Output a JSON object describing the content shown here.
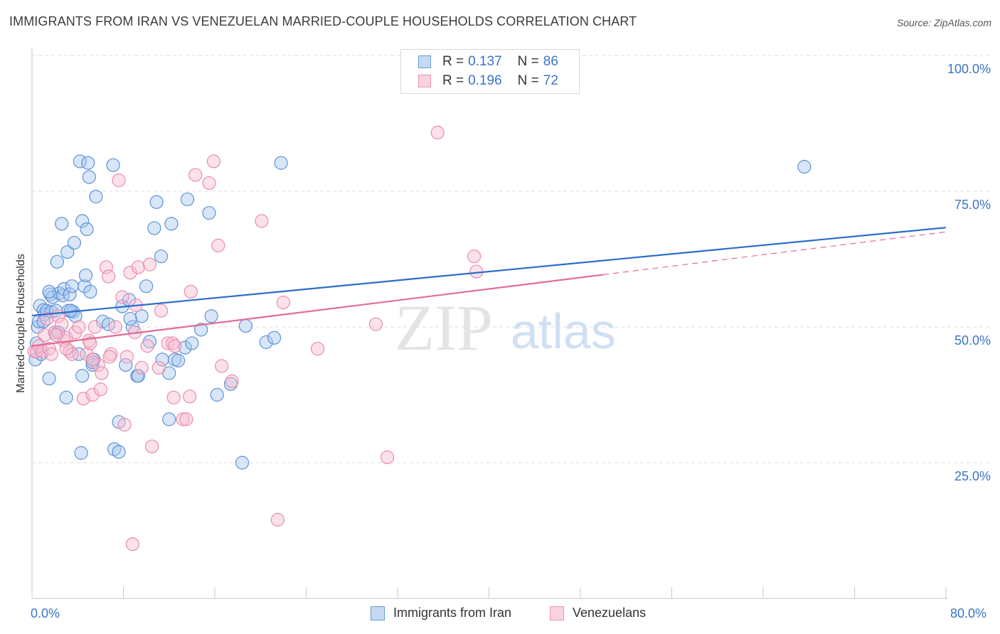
{
  "title": "IMMIGRANTS FROM IRAN VS VENEZUELAN MARRIED-COUPLE HOUSEHOLDS CORRELATION CHART",
  "source": "Source: ZipAtlas.com",
  "watermark": {
    "zip": "ZIP",
    "atlas": "atlas"
  },
  "legend_top": [
    {
      "r_label": "R =",
      "r_value": "0.137",
      "n_label": "N =",
      "n_value": "86"
    },
    {
      "r_label": "R =",
      "r_value": "0.196",
      "n_label": "N =",
      "n_value": "72"
    }
  ],
  "legend_bottom": [
    "Immigrants from Iran",
    "Venezuelans"
  ],
  "colors": {
    "blue": "#3a75c4",
    "blue_fill": "#a9c8ef",
    "blue_line": "#2a6dc9",
    "pink": "#e8739b",
    "pink_fill": "#f6bfd1",
    "pink_line": "#e06c95",
    "grid": "#e3e3e3",
    "axis_text": "#3a75c4"
  },
  "chart_data": {
    "type": "scatter",
    "title": "IMMIGRANTS FROM IRAN VS VENEZUELAN MARRIED-COUPLE HOUSEHOLDS CORRELATION CHART",
    "xlabel": "",
    "ylabel": "Married-couple Households",
    "xlim": [
      0,
      80
    ],
    "ylim": [
      0,
      105
    ],
    "x_tick_labels": [
      "0.0%",
      "80.0%"
    ],
    "y_ticks": [
      25,
      50,
      75,
      100
    ],
    "y_tick_labels": [
      "25.0%",
      "50.0%",
      "75.0%",
      "100.0%"
    ],
    "grid": true,
    "legend_position": "top-center",
    "series": [
      {
        "name": "Immigrants from Iran",
        "color": "#3a75c4",
        "trend": {
          "x": [
            0,
            80
          ],
          "y": [
            52.1,
            68.3
          ],
          "dashed_from": null
        },
        "points": [
          [
            0.3,
            44.0
          ],
          [
            0.4,
            47.0
          ],
          [
            0.5,
            50.0
          ],
          [
            0.6,
            51.0
          ],
          [
            0.7,
            53.9
          ],
          [
            0.8,
            45.0
          ],
          [
            1.0,
            53.1
          ],
          [
            1.1,
            52.3
          ],
          [
            1.3,
            53.0
          ],
          [
            1.5,
            40.5
          ],
          [
            1.6,
            56.0
          ],
          [
            1.7,
            52.8
          ],
          [
            1.8,
            55.5
          ],
          [
            2.0,
            49.0
          ],
          [
            2.1,
            53.0
          ],
          [
            2.2,
            62.0
          ],
          [
            2.4,
            56.2
          ],
          [
            2.6,
            69.0
          ],
          [
            2.7,
            55.8
          ],
          [
            2.8,
            57.0
          ],
          [
            3.0,
            37.0
          ],
          [
            3.1,
            63.8
          ],
          [
            3.2,
            53.0
          ],
          [
            3.3,
            56.0
          ],
          [
            3.5,
            57.5
          ],
          [
            3.6,
            52.8
          ],
          [
            3.7,
            65.5
          ],
          [
            3.8,
            52.0
          ],
          [
            4.1,
            45.0
          ],
          [
            4.2,
            80.5
          ],
          [
            4.4,
            69.5
          ],
          [
            4.6,
            57.5
          ],
          [
            4.7,
            59.5
          ],
          [
            4.8,
            68.0
          ],
          [
            4.9,
            80.2
          ],
          [
            5.0,
            77.6
          ],
          [
            5.1,
            56.5
          ],
          [
            5.3,
            43.0
          ],
          [
            5.4,
            44.0
          ],
          [
            5.6,
            74.0
          ],
          [
            6.2,
            51.0
          ],
          [
            6.7,
            50.5
          ],
          [
            7.1,
            79.8
          ],
          [
            7.2,
            27.5
          ],
          [
            7.6,
            32.5
          ],
          [
            7.9,
            53.8
          ],
          [
            8.2,
            43.0
          ],
          [
            8.5,
            55.0
          ],
          [
            8.8,
            50.0
          ],
          [
            9.2,
            41.0
          ],
          [
            9.6,
            52.0
          ],
          [
            10.0,
            57.5
          ],
          [
            10.3,
            47.3
          ],
          [
            10.7,
            68.2
          ],
          [
            10.9,
            73.0
          ],
          [
            11.4,
            44.0
          ],
          [
            11.3,
            63.0
          ],
          [
            12.0,
            41.5
          ],
          [
            12.2,
            69.0
          ],
          [
            12.5,
            44.0
          ],
          [
            12.8,
            43.8
          ],
          [
            13.4,
            46.2
          ],
          [
            13.6,
            73.5
          ],
          [
            14.0,
            47.0
          ],
          [
            14.8,
            49.5
          ],
          [
            15.5,
            71.0
          ],
          [
            15.7,
            52.0
          ],
          [
            16.2,
            37.5
          ],
          [
            17.4,
            39.5
          ],
          [
            18.4,
            25.0
          ],
          [
            18.7,
            50.2
          ],
          [
            20.5,
            47.2
          ],
          [
            21.2,
            48.0
          ],
          [
            21.8,
            80.2
          ],
          [
            67.6,
            79.5
          ],
          [
            2.3,
            49.0
          ],
          [
            4.4,
            41.0
          ],
          [
            7.6,
            27.0
          ],
          [
            5.3,
            43.5
          ],
          [
            1.5,
            56.5
          ],
          [
            1.0,
            51.0
          ],
          [
            4.3,
            26.8
          ],
          [
            9.3,
            41.0
          ],
          [
            8.6,
            51.5
          ],
          [
            3.4,
            53.0
          ],
          [
            12.0,
            33.0
          ]
        ]
      },
      {
        "name": "Venezuelans",
        "color": "#e8739b",
        "trend": {
          "x": [
            0,
            80
          ],
          "y": [
            46.5,
            67.5
          ],
          "dashed_from": 50
        },
        "points": [
          [
            0.2,
            45.5
          ],
          [
            0.4,
            45.5
          ],
          [
            0.6,
            46.5
          ],
          [
            0.9,
            45.5
          ],
          [
            1.1,
            48.5
          ],
          [
            1.3,
            51.5
          ],
          [
            1.5,
            46.0
          ],
          [
            1.7,
            45.0
          ],
          [
            2.0,
            49.0
          ],
          [
            2.3,
            52.0
          ],
          [
            2.6,
            50.5
          ],
          [
            2.8,
            47.5
          ],
          [
            3.0,
            48.0
          ],
          [
            3.3,
            45.5
          ],
          [
            3.5,
            45.0
          ],
          [
            3.8,
            49.0
          ],
          [
            4.1,
            50.0
          ],
          [
            4.5,
            36.8
          ],
          [
            4.8,
            45.0
          ],
          [
            5.0,
            47.5
          ],
          [
            5.3,
            37.5
          ],
          [
            5.5,
            50.0
          ],
          [
            5.8,
            43.0
          ],
          [
            6.0,
            38.5
          ],
          [
            6.1,
            41.5
          ],
          [
            6.5,
            61.0
          ],
          [
            6.7,
            59.3
          ],
          [
            6.9,
            45.0
          ],
          [
            7.3,
            50.0
          ],
          [
            7.6,
            77.0
          ],
          [
            7.9,
            55.5
          ],
          [
            8.1,
            32.0
          ],
          [
            8.3,
            44.5
          ],
          [
            8.6,
            60.0
          ],
          [
            8.8,
            10.0
          ],
          [
            9.1,
            54.0
          ],
          [
            9.3,
            61.0
          ],
          [
            9.6,
            42.5
          ],
          [
            10.1,
            46.5
          ],
          [
            10.3,
            61.5
          ],
          [
            10.5,
            28.0
          ],
          [
            11.1,
            42.5
          ],
          [
            11.3,
            53.0
          ],
          [
            11.9,
            47.0
          ],
          [
            12.3,
            47.0
          ],
          [
            12.4,
            37.0
          ],
          [
            12.5,
            46.5
          ],
          [
            13.2,
            33.0
          ],
          [
            13.5,
            33.0
          ],
          [
            13.8,
            37.2
          ],
          [
            13.9,
            56.5
          ],
          [
            14.3,
            78.0
          ],
          [
            15.5,
            76.5
          ],
          [
            15.9,
            80.5
          ],
          [
            16.3,
            65.0
          ],
          [
            16.6,
            42.8
          ],
          [
            17.5,
            40.0
          ],
          [
            20.1,
            69.5
          ],
          [
            21.5,
            14.5
          ],
          [
            22.0,
            54.5
          ],
          [
            25.0,
            46.0
          ],
          [
            30.1,
            50.5
          ],
          [
            31.1,
            26.0
          ],
          [
            35.5,
            85.8
          ],
          [
            38.7,
            63.0
          ],
          [
            38.9,
            60.2
          ],
          [
            5.3,
            44.0
          ],
          [
            3.0,
            46.0
          ],
          [
            9.0,
            49.0
          ],
          [
            6.8,
            44.5
          ],
          [
            2.1,
            48.5
          ],
          [
            5.1,
            47.0
          ]
        ]
      }
    ]
  }
}
